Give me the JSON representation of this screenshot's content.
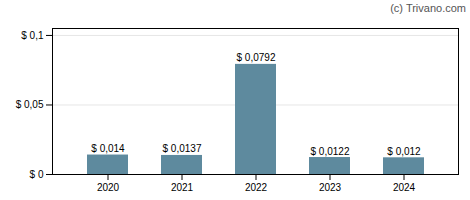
{
  "chart_data": {
    "type": "bar",
    "categories": [
      "2020",
      "2021",
      "2022",
      "2023",
      "2024"
    ],
    "values": [
      0.014,
      0.0137,
      0.0792,
      0.0122,
      0.012
    ],
    "value_labels": [
      "$ 0,014",
      "$ 0,0137",
      "$ 0,0792",
      "$ 0,0122",
      "$ 0,012"
    ],
    "color": "#5e8a9e",
    "ylim": [
      0,
      0.105
    ],
    "yticks": [
      {
        "value": 0,
        "label": "$ 0"
      },
      {
        "value": 0.05,
        "label": "$ 0,05"
      },
      {
        "value": 0.1,
        "label": "$ 0,1"
      }
    ],
    "grid": true,
    "data_labels": true,
    "annotations": [
      "(c) Trivano.com"
    ]
  }
}
